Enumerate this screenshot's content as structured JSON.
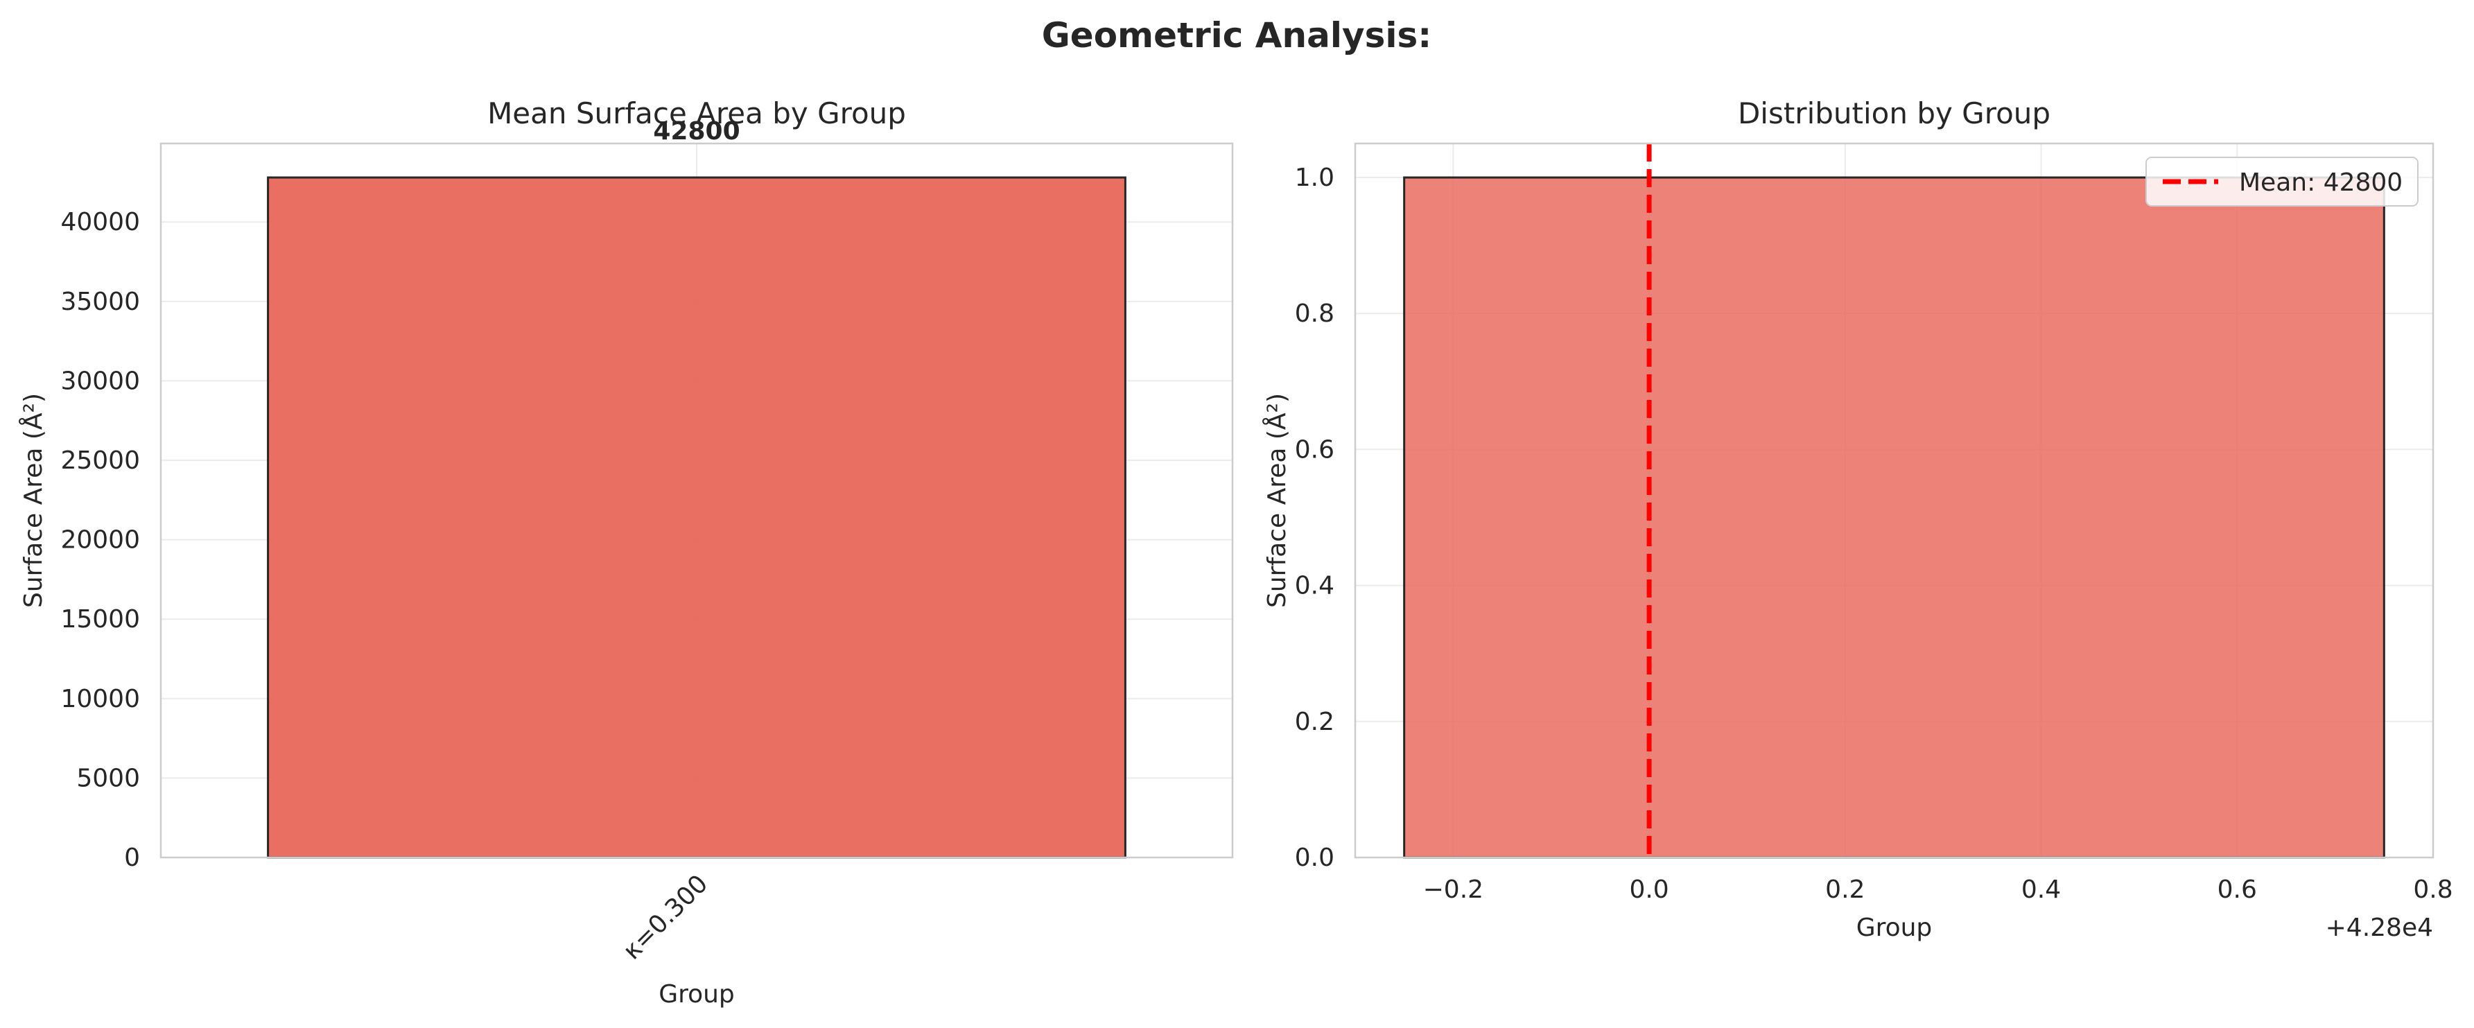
{
  "figure": {
    "suptitle": "Geometric Analysis:"
  },
  "chart_data": [
    {
      "type": "bar",
      "title": "Mean Surface Area by Group",
      "xlabel": "Group",
      "ylabel": "Surface Area (Å²)",
      "categories": [
        "κ=0.300"
      ],
      "values": [
        42800
      ],
      "value_labels": [
        "42800"
      ],
      "ylim": [
        0,
        44940
      ],
      "yticks": [
        0,
        5000,
        10000,
        15000,
        20000,
        25000,
        30000,
        35000,
        40000
      ],
      "grid": true,
      "color": "#e8675a"
    },
    {
      "type": "bar",
      "title": "Distribution by Group",
      "xlabel": "Group",
      "ylabel": "Surface Area (Å²)",
      "x_offset_label": "+4.28e4",
      "xlim": [
        42799.7,
        42800.8
      ],
      "ylim": [
        0,
        1.05
      ],
      "xticks": [
        -0.2,
        0.0,
        0.2,
        0.4,
        0.6,
        0.8
      ],
      "xtick_labels": [
        "−0.2",
        "0.0",
        "0.2",
        "0.4",
        "0.6",
        "0.8"
      ],
      "yticks": [
        0.0,
        0.2,
        0.4,
        0.6,
        0.8,
        1.0
      ],
      "ytick_labels": [
        "0.0",
        "0.2",
        "0.4",
        "0.6",
        "0.8",
        "1.0"
      ],
      "bins": [
        {
          "x0": 42799.75,
          "x1": 42800.75,
          "count": 1
        }
      ],
      "mean_line": {
        "x": 42800,
        "label": "Mean: 42800",
        "color": "#ff0000"
      },
      "legend": "top-right",
      "grid": true,
      "color": "#e8675a"
    }
  ]
}
